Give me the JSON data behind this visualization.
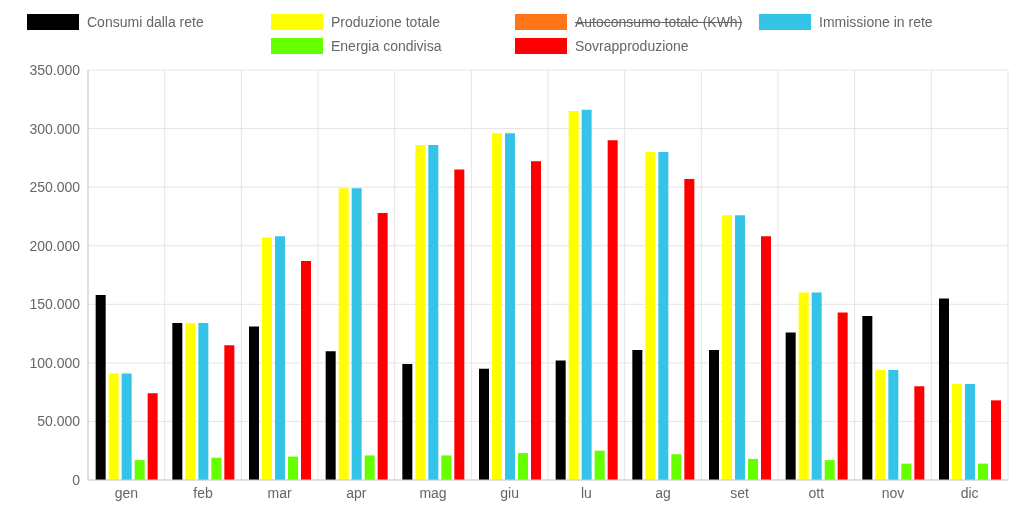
{
  "chart_data": {
    "type": "bar",
    "categories": [
      "gen",
      "feb",
      "mar",
      "apr",
      "mag",
      "giu",
      "lu",
      "ag",
      "set",
      "ott",
      "nov",
      "dic"
    ],
    "series": [
      {
        "name": "Consumi dalla rete",
        "color": "#000000",
        "values": [
          158000,
          134000,
          131000,
          110000,
          99000,
          95000,
          102000,
          111000,
          111000,
          126000,
          140000,
          155000
        ]
      },
      {
        "name": "Produzione totale",
        "color": "#ffff00",
        "values": [
          91000,
          134000,
          207000,
          249000,
          286000,
          296000,
          315000,
          280000,
          226000,
          160000,
          94000,
          82000
        ]
      },
      {
        "name": "Autoconsumo totale (KWh)",
        "color": "#ff7518",
        "values": [
          null,
          null,
          null,
          null,
          null,
          null,
          null,
          null,
          null,
          null,
          null,
          null
        ]
      },
      {
        "name": "Immissione in rete",
        "color": "#33c4e8",
        "values": [
          91000,
          134000,
          208000,
          249000,
          286000,
          296000,
          316000,
          280000,
          226000,
          160000,
          94000,
          82000
        ]
      },
      {
        "name": "Energia condivisa",
        "color": "#66ff00",
        "values": [
          17000,
          19000,
          20000,
          21000,
          21000,
          23000,
          25000,
          22000,
          18000,
          17000,
          14000,
          14000
        ]
      },
      {
        "name": "Sovrapproduzione",
        "color": "#ff0000",
        "values": [
          74000,
          115000,
          187000,
          228000,
          265000,
          272000,
          290000,
          257000,
          208000,
          143000,
          80000,
          68000
        ]
      }
    ],
    "ylim": [
      0,
      350000
    ],
    "yticks": [
      0,
      {
        "value": 50000,
        "label": "50.000"
      },
      {
        "value": 100000,
        "label": "100.000"
      },
      {
        "value": 150000,
        "label": "150.000"
      },
      {
        "value": 200000,
        "label": "200.000"
      },
      {
        "value": 250000,
        "label": "250.000"
      },
      {
        "value": 300000,
        "label": "300.000"
      },
      {
        "value": 350000,
        "label": "350.000"
      }
    ],
    "grid": true,
    "legend": "top"
  }
}
